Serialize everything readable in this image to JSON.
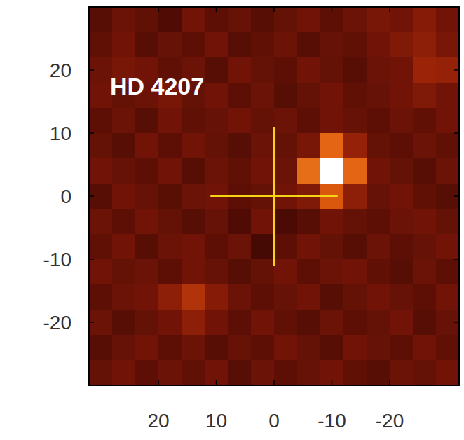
{
  "chart_data": {
    "type": "heatmap",
    "title": "HD 4207",
    "xlim": [
      32,
      -32
    ],
    "ylim": [
      -30,
      30
    ],
    "xticks": [
      20,
      10,
      0,
      -10,
      -20
    ],
    "yticks": [
      20,
      10,
      0,
      -10,
      -20
    ],
    "x": [
      30,
      26,
      22,
      18,
      14,
      10,
      6,
      2,
      -2,
      -6,
      -10,
      -14,
      -18,
      -22,
      -26,
      -30
    ],
    "y": [
      28,
      24,
      20,
      16,
      12,
      8,
      4,
      0,
      -4,
      -8,
      -12,
      -16,
      -20,
      -24,
      -28
    ],
    "zlim": [
      0,
      1
    ],
    "cells": [
      [
        0.22,
        0.28,
        0.25,
        0.2,
        0.3,
        0.24,
        0.27,
        0.22,
        0.26,
        0.3,
        0.24,
        0.28,
        0.32,
        0.3,
        0.36,
        0.3
      ],
      [
        0.25,
        0.3,
        0.22,
        0.27,
        0.24,
        0.3,
        0.22,
        0.25,
        0.28,
        0.22,
        0.27,
        0.25,
        0.3,
        0.34,
        0.38,
        0.32
      ],
      [
        0.28,
        0.32,
        0.3,
        0.25,
        0.28,
        0.22,
        0.3,
        0.26,
        0.24,
        0.3,
        0.26,
        0.22,
        0.28,
        0.3,
        0.42,
        0.4
      ],
      [
        0.3,
        0.26,
        0.28,
        0.32,
        0.26,
        0.3,
        0.24,
        0.28,
        0.22,
        0.26,
        0.3,
        0.25,
        0.27,
        0.3,
        0.34,
        0.3
      ],
      [
        0.24,
        0.28,
        0.22,
        0.3,
        0.25,
        0.27,
        0.3,
        0.26,
        0.28,
        0.24,
        0.3,
        0.27,
        0.24,
        0.28,
        0.25,
        0.3
      ],
      [
        0.26,
        0.22,
        0.3,
        0.24,
        0.3,
        0.26,
        0.22,
        0.28,
        0.26,
        0.32,
        0.62,
        0.4,
        0.26,
        0.24,
        0.28,
        0.25
      ],
      [
        0.3,
        0.27,
        0.24,
        0.3,
        0.22,
        0.28,
        0.25,
        0.3,
        0.28,
        0.64,
        1.0,
        0.62,
        0.3,
        0.26,
        0.22,
        0.28
      ],
      [
        0.22,
        0.3,
        0.27,
        0.23,
        0.28,
        0.3,
        0.24,
        0.26,
        0.3,
        0.34,
        0.58,
        0.38,
        0.27,
        0.3,
        0.25,
        0.22
      ],
      [
        0.28,
        0.24,
        0.3,
        0.26,
        0.22,
        0.27,
        0.2,
        0.3,
        0.18,
        0.22,
        0.3,
        0.26,
        0.24,
        0.28,
        0.3,
        0.26
      ],
      [
        0.25,
        0.3,
        0.22,
        0.28,
        0.3,
        0.24,
        0.28,
        0.15,
        0.24,
        0.3,
        0.26,
        0.22,
        0.28,
        0.24,
        0.27,
        0.3
      ],
      [
        0.3,
        0.26,
        0.28,
        0.24,
        0.3,
        0.27,
        0.22,
        0.26,
        0.3,
        0.24,
        0.28,
        0.3,
        0.25,
        0.22,
        0.28,
        0.24
      ],
      [
        0.24,
        0.28,
        0.3,
        0.38,
        0.48,
        0.36,
        0.28,
        0.24,
        0.27,
        0.3,
        0.22,
        0.26,
        0.3,
        0.27,
        0.24,
        0.3
      ],
      [
        0.28,
        0.22,
        0.26,
        0.3,
        0.38,
        0.3,
        0.24,
        0.3,
        0.25,
        0.22,
        0.28,
        0.24,
        0.26,
        0.3,
        0.22,
        0.27
      ],
      [
        0.22,
        0.27,
        0.3,
        0.24,
        0.28,
        0.22,
        0.27,
        0.24,
        0.3,
        0.26,
        0.22,
        0.3,
        0.27,
        0.24,
        0.3,
        0.25
      ],
      [
        0.26,
        0.3,
        0.24,
        0.28,
        0.25,
        0.3,
        0.22,
        0.28,
        0.24,
        0.27,
        0.3,
        0.25,
        0.22,
        0.28,
        0.26,
        0.3
      ]
    ],
    "star": {
      "x": 0,
      "y": 0,
      "extent": 11,
      "color": "#f5d416"
    }
  }
}
